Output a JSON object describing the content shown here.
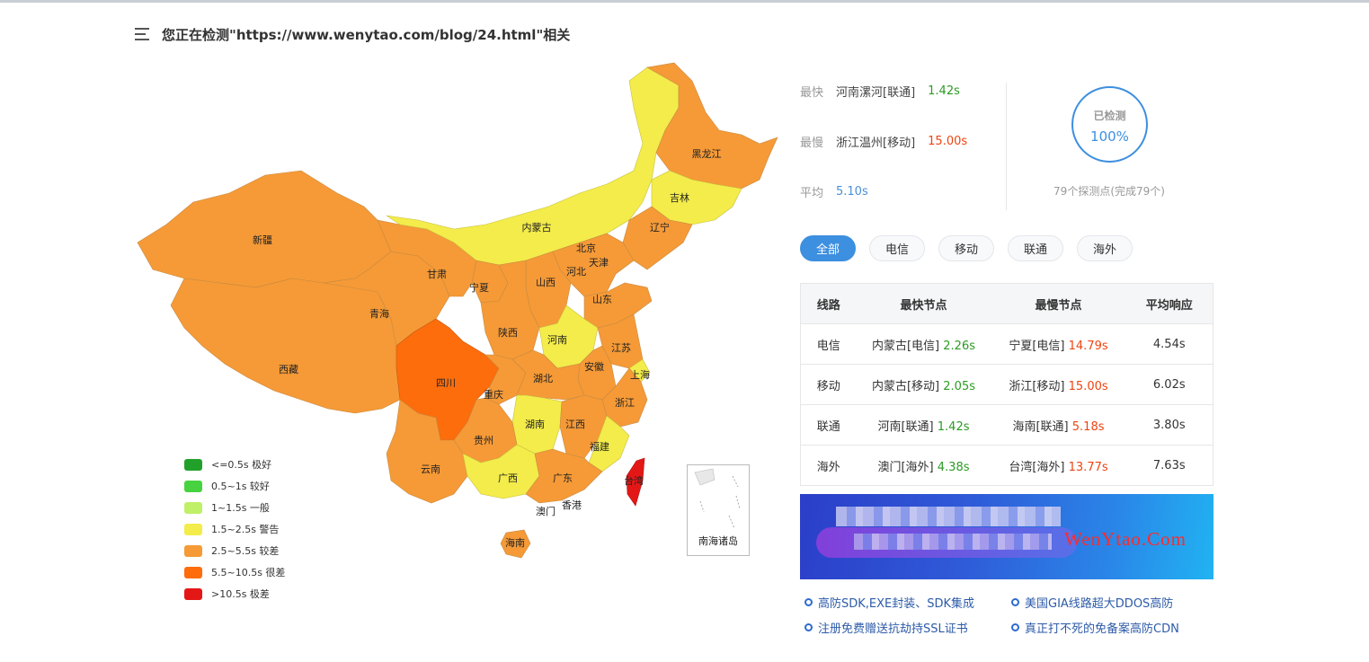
{
  "header": {
    "title": "您正在检测\"https://www.wenytao.com/blog/24.html\"相关"
  },
  "colors": {
    "excellent": "#22a12a",
    "good": "#47d33f",
    "normal": "#bff067",
    "warning": "#f3ec4a",
    "poor": "#f59a37",
    "bad": "#fd6d0c",
    "terrible": "#e41717"
  },
  "map": {
    "provinces": [
      {
        "name": "新疆"
      },
      {
        "name": "西藏"
      },
      {
        "name": "青海"
      },
      {
        "name": "甘肃"
      },
      {
        "name": "内蒙古"
      },
      {
        "name": "黑龙江"
      },
      {
        "name": "吉林"
      },
      {
        "name": "辽宁"
      },
      {
        "name": "北京"
      },
      {
        "name": "天津"
      },
      {
        "name": "河北"
      },
      {
        "name": "山西"
      },
      {
        "name": "宁夏"
      },
      {
        "name": "陕西"
      },
      {
        "name": "山东"
      },
      {
        "name": "河南"
      },
      {
        "name": "江苏"
      },
      {
        "name": "安徽"
      },
      {
        "name": "上海"
      },
      {
        "name": "四川"
      },
      {
        "name": "重庆"
      },
      {
        "name": "湖北"
      },
      {
        "name": "浙江"
      },
      {
        "name": "湖南"
      },
      {
        "name": "江西"
      },
      {
        "name": "贵州"
      },
      {
        "name": "云南"
      },
      {
        "name": "广西"
      },
      {
        "name": "广东"
      },
      {
        "name": "福建"
      },
      {
        "name": "台湾"
      },
      {
        "name": "澳门"
      },
      {
        "name": "香港"
      },
      {
        "name": "海南"
      }
    ],
    "inset_label": "南海诸岛"
  },
  "legend": [
    {
      "label": "<=0.5s 极好",
      "color": "#22a12a"
    },
    {
      "label": "0.5~1s 较好",
      "color": "#47d33f"
    },
    {
      "label": "1~1.5s 一般",
      "color": "#bff067"
    },
    {
      "label": "1.5~2.5s 警告",
      "color": "#f3ec4a"
    },
    {
      "label": "2.5~5.5s 较差",
      "color": "#f59a37"
    },
    {
      "label": "5.5~10.5s 很差",
      "color": "#fd6d0c"
    },
    {
      "label": ">10.5s 极差",
      "color": "#e41717"
    }
  ],
  "stats": {
    "fastest": {
      "key": "最快",
      "place": "河南漯河[联通]",
      "value": "1.42s"
    },
    "slowest": {
      "key": "最慢",
      "place": "浙江温州[移动]",
      "value": "15.00s"
    },
    "average": {
      "key": "平均",
      "value": "5.10s"
    },
    "progress": {
      "label": "已检测",
      "value": "100%"
    },
    "probe_note": "79个探测点(完成79个)"
  },
  "tabs": [
    {
      "label": "全部",
      "active": true
    },
    {
      "label": "电信",
      "active": false
    },
    {
      "label": "移动",
      "active": false
    },
    {
      "label": "联通",
      "active": false
    },
    {
      "label": "海外",
      "active": false
    }
  ],
  "table": {
    "headers": [
      "线路",
      "最快节点",
      "最慢节点",
      "平均响应"
    ],
    "rows": [
      {
        "line": "电信",
        "fast_node": "内蒙古[电信]",
        "fast_val": "2.26s",
        "slow_node": "宁夏[电信]",
        "slow_val": "14.79s",
        "avg": "4.54s"
      },
      {
        "line": "移动",
        "fast_node": "内蒙古[移动]",
        "fast_val": "2.05s",
        "slow_node": "浙江[移动]",
        "slow_val": "15.00s",
        "avg": "6.02s"
      },
      {
        "line": "联通",
        "fast_node": "河南[联通]",
        "fast_val": "1.42s",
        "slow_node": "海南[联通]",
        "slow_val": "5.18s",
        "avg": "3.80s"
      },
      {
        "line": "海外",
        "fast_node": "澳门[海外]",
        "fast_val": "4.38s",
        "slow_node": "台湾[海外]",
        "slow_val": "13.77s",
        "avg": "7.63s"
      }
    ]
  },
  "banner": {
    "brand": "WenYtao.Com"
  },
  "ads": [
    {
      "label": "高防SDK,EXE封装、SDK集成"
    },
    {
      "label": "美国GIA线路超大DDOS高防"
    },
    {
      "label": "注册免费赠送抗劫持SSL证书"
    },
    {
      "label": "真正打不死的免备案高防CDN"
    }
  ]
}
